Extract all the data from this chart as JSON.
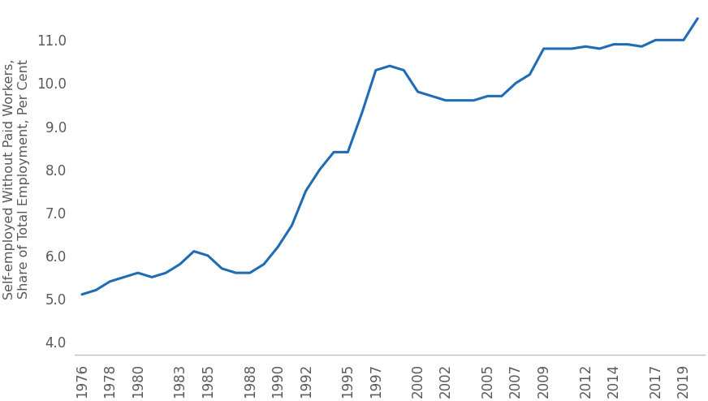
{
  "years": [
    1976,
    1977,
    1978,
    1979,
    1980,
    1981,
    1982,
    1983,
    1984,
    1985,
    1986,
    1987,
    1988,
    1989,
    1990,
    1991,
    1992,
    1993,
    1994,
    1995,
    1996,
    1997,
    1998,
    1999,
    2000,
    2001,
    2002,
    2003,
    2004,
    2005,
    2006,
    2007,
    2008,
    2009,
    2010,
    2011,
    2012,
    2013,
    2014,
    2015,
    2016,
    2017,
    2018,
    2019,
    2020
  ],
  "values": [
    5.1,
    5.2,
    5.4,
    5.5,
    5.6,
    5.5,
    5.6,
    5.8,
    6.1,
    6.0,
    5.7,
    5.6,
    5.6,
    5.8,
    6.2,
    6.7,
    7.5,
    8.0,
    8.4,
    8.4,
    9.3,
    10.3,
    10.4,
    10.3,
    9.8,
    9.7,
    9.6,
    9.6,
    9.6,
    9.7,
    9.7,
    10.0,
    10.2,
    10.8,
    10.8,
    10.8,
    10.85,
    10.8,
    10.9,
    10.9,
    10.85,
    11.0,
    11.0,
    11.0,
    11.5
  ],
  "xtick_labels": [
    "1976",
    "1978",
    "1980",
    "1983",
    "1985",
    "1988",
    "1990",
    "1992",
    "1995",
    "1997",
    "2000",
    "2002",
    "2005",
    "2007",
    "2009",
    "2012",
    "2014",
    "2017",
    "2019"
  ],
  "xtick_years": [
    1976,
    1978,
    1980,
    1983,
    1985,
    1988,
    1990,
    1992,
    1995,
    1997,
    2000,
    2002,
    2005,
    2007,
    2009,
    2012,
    2014,
    2017,
    2019
  ],
  "ytick_values": [
    4.0,
    5.0,
    6.0,
    7.0,
    8.0,
    9.0,
    10.0,
    11.0
  ],
  "ytick_labels": [
    "4.0",
    "5.0",
    "6.0",
    "7.0",
    "8.0",
    "9.0",
    "10.0",
    "11.0"
  ],
  "ylabel": "Self-employed Without Paid Workers,\nShare of Total Employment, Per Cent",
  "ylim": [
    3.7,
    11.85
  ],
  "xlim": [
    1975.5,
    2020.5
  ],
  "line_color": "#1f6cb5",
  "line_width": 2.2,
  "background_color": "#ffffff",
  "spine_color": "#c0c0c0",
  "tick_label_color": "#595959",
  "tick_label_fontsize": 12,
  "ylabel_fontsize": 11.5
}
